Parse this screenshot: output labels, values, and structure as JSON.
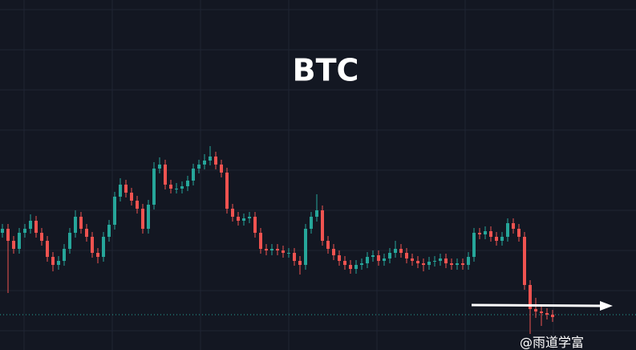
{
  "chart_data": {
    "type": "candlestick",
    "title": "BTC",
    "watermark": "@雨道学富",
    "up_color": "#26a69a",
    "down_color": "#ef5350",
    "ylim": [
      0,
      436
    ],
    "open": [
      146,
      151,
      136,
      126,
      146,
      151,
      161,
      146,
      136,
      116,
      106,
      111,
      126,
      146,
      166,
      151,
      141,
      121,
      116,
      141,
      156,
      191,
      206,
      196,
      186,
      176,
      151,
      181,
      226,
      231,
      206,
      201,
      201,
      204,
      211,
      226,
      231,
      236,
      241,
      231,
      221,
      176,
      166,
      161,
      164,
      166,
      146,
      126,
      124,
      126,
      124,
      121,
      121,
      111,
      106,
      151,
      166,
      174,
      136,
      126,
      118,
      111,
      106,
      101,
      106,
      108,
      116,
      118,
      111,
      114,
      121,
      126,
      121,
      114,
      111,
      108,
      106,
      110,
      111,
      114,
      108,
      106,
      108,
      106,
      116,
      146,
      144,
      148,
      141,
      136,
      141,
      158,
      151,
      141,
      81,
      51,
      48,
      46,
      44
    ],
    "high": [
      157,
      157,
      142,
      152,
      157,
      169,
      167,
      152,
      142,
      122,
      117,
      132,
      152,
      174,
      172,
      157,
      147,
      127,
      147,
      162,
      197,
      214,
      212,
      202,
      192,
      182,
      187,
      234,
      240,
      237,
      212,
      208,
      210,
      217,
      232,
      237,
      244,
      254,
      247,
      237,
      227,
      182,
      172,
      170,
      172,
      172,
      152,
      132,
      132,
      132,
      130,
      127,
      127,
      117,
      157,
      172,
      194,
      180,
      142,
      132,
      124,
      117,
      112,
      112,
      114,
      122,
      124,
      124,
      120,
      127,
      136,
      132,
      127,
      120,
      117,
      114,
      116,
      117,
      120,
      120,
      114,
      114,
      114,
      122,
      152,
      152,
      154,
      154,
      147,
      147,
      164,
      164,
      157,
      147,
      87,
      65,
      56,
      52,
      50
    ],
    "low": [
      140,
      71,
      120,
      120,
      140,
      145,
      140,
      130,
      110,
      98,
      100,
      105,
      120,
      140,
      145,
      135,
      115,
      108,
      110,
      135,
      150,
      185,
      190,
      180,
      170,
      145,
      145,
      175,
      220,
      200,
      195,
      195,
      195,
      198,
      205,
      220,
      225,
      230,
      225,
      215,
      170,
      160,
      155,
      155,
      158,
      140,
      120,
      118,
      118,
      118,
      115,
      115,
      105,
      94,
      100,
      145,
      160,
      130,
      120,
      112,
      105,
      100,
      95,
      95,
      100,
      102,
      110,
      105,
      105,
      108,
      115,
      115,
      108,
      105,
      102,
      98,
      100,
      104,
      105,
      102,
      100,
      100,
      100,
      100,
      110,
      138,
      138,
      135,
      130,
      130,
      135,
      145,
      135,
      75,
      20,
      40,
      30,
      38,
      35
    ],
    "close": [
      151,
      136,
      126,
      146,
      151,
      161,
      146,
      136,
      116,
      106,
      111,
      126,
      146,
      166,
      151,
      141,
      121,
      116,
      141,
      156,
      191,
      206,
      196,
      186,
      176,
      151,
      181,
      226,
      231,
      206,
      201,
      201,
      204,
      211,
      226,
      231,
      236,
      241,
      231,
      221,
      176,
      166,
      161,
      164,
      166,
      146,
      126,
      124,
      126,
      124,
      121,
      121,
      111,
      106,
      151,
      166,
      174,
      136,
      126,
      118,
      111,
      106,
      101,
      106,
      108,
      116,
      118,
      111,
      114,
      121,
      126,
      121,
      114,
      111,
      108,
      106,
      110,
      111,
      114,
      108,
      106,
      108,
      106,
      116,
      146,
      144,
      148,
      141,
      136,
      141,
      158,
      151,
      141,
      81,
      51,
      48,
      46,
      44,
      41
    ]
  }
}
